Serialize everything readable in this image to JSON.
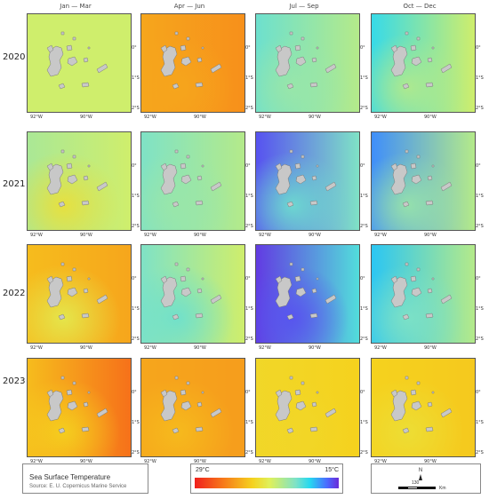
{
  "columns": [
    "Jan — Mar",
    "Apr — Jun",
    "Jul — Sep",
    "Oct — Dec"
  ],
  "years": [
    "2020",
    "2021",
    "2022",
    "2023"
  ],
  "axis": {
    "lat_labels": [
      "0°",
      "1°S",
      "2°S"
    ],
    "lon_labels": [
      "92°W",
      "90°W",
      "88°W"
    ]
  },
  "legend": {
    "title": "Sea Surface Temperature",
    "source": "Source: E. U. Copernicus Marine Service"
  },
  "colorbar": {
    "max_label": "29°C",
    "min_label": "15°C",
    "max_value": 29,
    "min_value": 15
  },
  "scale": {
    "north": "N",
    "distance": "130",
    "unit": "Km"
  },
  "colors": {
    "land": "#c8c8c8",
    "hot": "#f0201c",
    "cold": "#6a2bd8"
  },
  "panels": [
    {
      "year": "2020",
      "season": "Jan — Mar",
      "west": 0.55,
      "east": 0.55,
      "south": 0.55
    },
    {
      "year": "2020",
      "season": "Apr — Jun",
      "west": 0.3,
      "east": 0.25,
      "south": 0.3
    },
    {
      "year": "2020",
      "season": "Jul — Sep",
      "west": 0.72,
      "east": 0.6,
      "south": 0.65
    },
    {
      "year": "2020",
      "season": "Oct — Dec",
      "west": 0.78,
      "east": 0.55,
      "south": 0.6
    },
    {
      "year": "2021",
      "season": "Jan — Mar",
      "west": 0.62,
      "east": 0.55,
      "south": 0.45
    },
    {
      "year": "2021",
      "season": "Apr — Jun",
      "west": 0.7,
      "east": 0.6,
      "south": 0.65
    },
    {
      "year": "2021",
      "season": "Jul — Sep",
      "west": 0.95,
      "east": 0.7,
      "south": 0.72
    },
    {
      "year": "2021",
      "season": "Oct — Dec",
      "west": 0.88,
      "east": 0.6,
      "south": 0.65
    },
    {
      "year": "2022",
      "season": "Jan — Mar",
      "west": 0.35,
      "east": 0.3,
      "south": 0.5
    },
    {
      "year": "2022",
      "season": "Apr — Jun",
      "west": 0.7,
      "east": 0.55,
      "south": 0.72
    },
    {
      "year": "2022",
      "season": "Jul — Sep",
      "west": 0.98,
      "east": 0.75,
      "south": 0.95
    },
    {
      "year": "2022",
      "season": "Oct — Dec",
      "west": 0.82,
      "east": 0.6,
      "south": 0.7
    },
    {
      "year": "2023",
      "season": "Jan — Mar",
      "west": 0.35,
      "east": 0.18,
      "south": 0.4
    },
    {
      "year": "2023",
      "season": "Apr — Jun",
      "west": 0.3,
      "east": 0.28,
      "south": 0.35
    },
    {
      "year": "2023",
      "season": "Jul — Sep",
      "west": 0.42,
      "east": 0.4,
      "south": 0.42
    },
    {
      "year": "2023",
      "season": "Oct — Dec",
      "west": 0.4,
      "east": 0.38,
      "south": 0.45
    }
  ]
}
